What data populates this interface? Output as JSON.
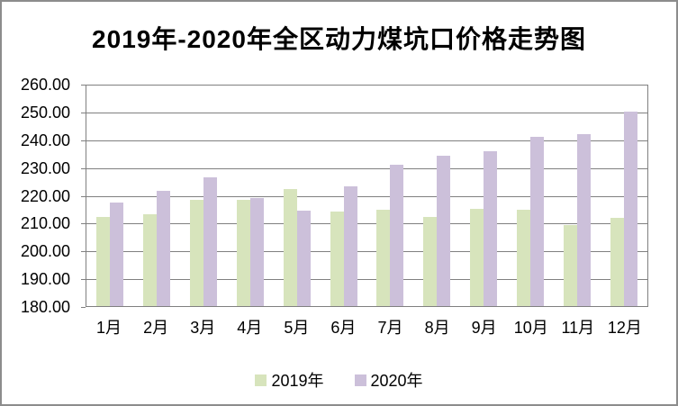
{
  "chart_data": {
    "type": "bar",
    "title": "2019年-2020年全区动力煤坑口价格走势图",
    "categories": [
      "1月",
      "2月",
      "3月",
      "4月",
      "5月",
      "6月",
      "7月",
      "8月",
      "9月",
      "10月",
      "11月",
      "12月"
    ],
    "series": [
      {
        "name": "2019年",
        "color": "#D7E4BC",
        "values": [
          212.2,
          213.0,
          218.3,
          218.3,
          222.0,
          214.0,
          214.7,
          212.2,
          215.1,
          214.7,
          209.2,
          211.7
        ]
      },
      {
        "name": "2020年",
        "color": "#CCC0DA",
        "values": [
          217.1,
          221.5,
          226.2,
          219.0,
          214.4,
          223.2,
          230.7,
          234.0,
          235.6,
          241.0,
          241.8,
          250.0
        ]
      }
    ],
    "ylim": [
      180,
      260
    ],
    "ytick_step": 10,
    "ytick_labels": [
      "260.00",
      "250.00",
      "240.00",
      "230.00",
      "220.00",
      "210.00",
      "200.00",
      "190.00",
      "180.00"
    ],
    "xlabel": "",
    "ylabel": "",
    "grid": true,
    "gridline_color": "#808080",
    "frame_border_color": "#8c8c8c",
    "background_color": "#ffffff",
    "legend_position": "bottom"
  }
}
